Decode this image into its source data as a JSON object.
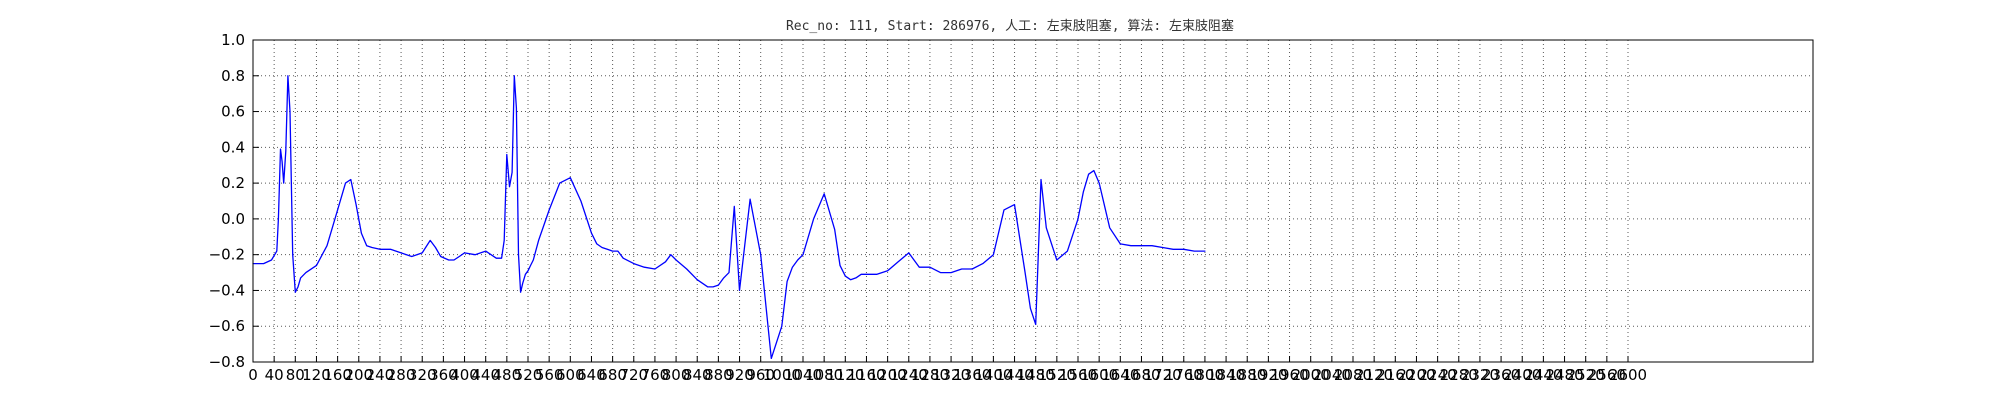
{
  "chart_data": {
    "type": "line",
    "title": "Rec_no: 111, Start: 286976, 人工: 左束肢阻塞, 算法: 左束肢阻塞",
    "xlabel": "",
    "ylabel": "",
    "xlim": [
      0,
      2600
    ],
    "ylim": [
      -0.8,
      1.0
    ],
    "grid": true,
    "legend": "none",
    "x_ticks": [
      0,
      40,
      80,
      120,
      160,
      200,
      240,
      280,
      320,
      360,
      400,
      440,
      480,
      520,
      560,
      600,
      640,
      680,
      720,
      760,
      800,
      840,
      880,
      920,
      960,
      1000,
      1040,
      1080,
      1120,
      1160,
      1200,
      1240,
      1280,
      1320,
      1360,
      1400,
      1440,
      1480,
      1520,
      1560,
      1600,
      1640,
      1680,
      1720,
      1760,
      1800,
      1840,
      1880,
      1920,
      1960,
      2000,
      2040,
      2080,
      2120,
      2160,
      2200,
      2240,
      2280,
      2320,
      2360,
      2400,
      2440,
      2480,
      2520,
      2560,
      2600
    ],
    "x_tick_labels": [
      "0",
      "40",
      "80",
      "120",
      "160",
      "200",
      "240",
      "280",
      "320",
      "360",
      "400",
      "440",
      "480",
      "520",
      "560",
      "600",
      "640",
      "680",
      "720",
      "760",
      "800",
      "840",
      "880",
      "920",
      "960",
      "1000",
      "1040",
      "1080",
      "1120",
      "1160",
      "1200",
      "1240",
      "1280",
      "1320",
      "1360",
      "1400",
      "1440",
      "1480",
      "1520",
      "1560",
      "1600",
      "1640",
      "1680",
      "1720",
      "1760",
      "1800",
      "1840",
      "1880",
      "1920",
      "1960",
      "2000",
      "2040",
      "2080",
      "2120",
      "2160",
      "2200",
      "2240",
      "2280",
      "2320",
      "2360",
      "2400",
      "2440",
      "2480",
      "2520",
      "2560",
      "2600"
    ],
    "y_ticks": [
      -0.8,
      -0.6,
      -0.4,
      -0.2,
      0.0,
      0.2,
      0.4,
      0.6,
      0.8,
      1.0
    ],
    "y_tick_labels": [
      "−0.8",
      "−0.6",
      "−0.4",
      "−0.2",
      "0.0",
      "0.2",
      "0.4",
      "0.6",
      "0.8",
      "1.0"
    ],
    "colors": {
      "normal": "#0000ff",
      "highlight": "#ff0000",
      "frame": "#000000",
      "grid": "#000000"
    },
    "series": [
      {
        "color": "#0000ff",
        "x": [
          0,
          20,
          35,
          45,
          48,
          52,
          55,
          58,
          62,
          66,
          70,
          75,
          80,
          85,
          90,
          100,
          120,
          140,
          160,
          175,
          185,
          195,
          205,
          215,
          225,
          240,
          260,
          280,
          300,
          320,
          335,
          345,
          355,
          370,
          380,
          390,
          400,
          420,
          440,
          460,
          470,
          475,
          480,
          485,
          490,
          494,
          498,
          502,
          506,
          510,
          515,
          520,
          525,
          530,
          540,
          560,
          580,
          600,
          620,
          640,
          650,
          660,
          670,
          680,
          690,
          700,
          720,
          740,
          760,
          780,
          790,
          800,
          820,
          840,
          860,
          870,
          880,
          890,
          900,
          910,
          920,
          940,
          960,
          980,
          1000,
          1010,
          1020,
          1030,
          1040,
          1060,
          1080,
          1100,
          1110,
          1120,
          1130,
          1140,
          1150,
          1160,
          1170,
          1180,
          1200,
          1220,
          1240,
          1260,
          1280,
          1300,
          1320,
          1340,
          1360
        ],
        "y": [
          -0.25,
          -0.25,
          -0.23,
          -0.18,
          0.0,
          0.39,
          0.32,
          0.2,
          0.38,
          0.8,
          0.6,
          -0.2,
          -0.41,
          -0.38,
          -0.33,
          -0.3,
          -0.26,
          -0.15,
          0.05,
          0.2,
          0.22,
          0.08,
          -0.08,
          -0.15,
          -0.16,
          -0.17,
          -0.17,
          -0.19,
          -0.21,
          -0.19,
          -0.12,
          -0.16,
          -0.21,
          -0.23,
          -0.23,
          -0.21,
          -0.19,
          -0.2,
          -0.18,
          -0.22,
          -0.22,
          -0.12,
          0.36,
          0.18,
          0.26,
          0.8,
          0.62,
          -0.2,
          -0.41,
          -0.36,
          -0.31,
          -0.29,
          -0.26,
          -0.23,
          -0.12,
          0.05,
          0.2,
          0.23,
          0.1,
          -0.08,
          -0.14,
          -0.16,
          -0.17,
          -0.18,
          -0.18,
          -0.22,
          -0.25,
          -0.27,
          -0.28,
          -0.24,
          -0.2,
          -0.23,
          -0.28,
          -0.34,
          -0.38,
          -0.38,
          -0.37,
          -0.33,
          -0.3,
          0.07,
          -0.4,
          0.11,
          -0.2,
          -0.78,
          -0.6,
          -0.35,
          -0.27,
          -0.23,
          -0.2,
          0.0,
          0.14,
          -0.06,
          -0.26,
          -0.32,
          -0.34,
          -0.33,
          -0.31,
          -0.31,
          -0.31,
          -0.31,
          -0.29,
          -0.24,
          -0.19,
          -0.27,
          -0.27,
          -0.3,
          -0.3,
          -0.28,
          -0.28
        ],
        "x2": [
          1360,
          1380,
          1400,
          1420,
          1440,
          1460,
          1470,
          1480,
          1485,
          1490,
          1500,
          1520,
          1540,
          1560,
          1570,
          1580,
          1590,
          1600,
          1620,
          1640,
          1660,
          1680,
          1700,
          1720,
          1740,
          1760,
          1780,
          1800
        ],
        "y2": [
          -0.28,
          -0.25,
          -0.2,
          0.05,
          0.08,
          -0.3,
          -0.5,
          -0.59,
          -0.2,
          0.22,
          -0.05,
          -0.23,
          -0.18,
          0.0,
          0.15,
          0.25,
          0.27,
          0.2,
          -0.05,
          -0.14,
          -0.15,
          -0.15,
          -0.15,
          -0.16,
          -0.17,
          -0.17,
          -0.18,
          -0.18
        ]
      }
    ]
  }
}
